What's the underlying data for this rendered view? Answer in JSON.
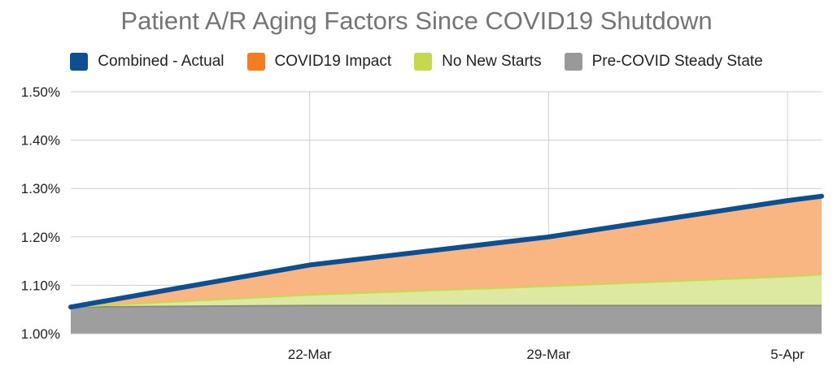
{
  "chart_data": {
    "type": "area",
    "title": "Patient A/R Aging Factors Since COVID19 Shutdown",
    "xlabel": "",
    "ylabel": "",
    "ylim": [
      1.0,
      1.5
    ],
    "y_ticks": [
      "1.00%",
      "1.10%",
      "1.20%",
      "1.30%",
      "1.40%",
      "1.50%"
    ],
    "y_tick_values": [
      1.0,
      1.1,
      1.2,
      1.3,
      1.4,
      1.5
    ],
    "x_ticks": [
      "22-Mar",
      "29-Mar",
      "5-Apr"
    ],
    "x_tick_days": [
      7,
      14,
      21
    ],
    "x_range_days": [
      0,
      22
    ],
    "x_days": [
      0,
      7,
      14,
      21,
      22
    ],
    "grid": true,
    "legend_position": "top",
    "series": [
      {
        "name": "Pre-COVID Steady State",
        "kind": "stacked-area",
        "color": "#9e9e9e",
        "values": [
          1.055,
          1.058,
          1.058,
          1.058,
          1.058
        ]
      },
      {
        "name": "No New Starts",
        "kind": "stacked-area",
        "color": "#dde8a0",
        "values": [
          1.055,
          1.08,
          1.098,
          1.118,
          1.122
        ]
      },
      {
        "name": "COVID19 Impact",
        "kind": "stacked-area",
        "color": "#f9b582",
        "values": [
          1.055,
          1.14,
          1.198,
          1.272,
          1.28
        ]
      },
      {
        "name": "Combined - Actual",
        "kind": "line",
        "color": "#0d4f93",
        "values": [
          1.055,
          1.142,
          1.2,
          1.275,
          1.284
        ]
      }
    ],
    "legend": [
      {
        "name": "Combined - Actual",
        "color": "#0d4f93"
      },
      {
        "name": "COVID19 Impact",
        "color": "#f57c1f"
      },
      {
        "name": "No New Starts",
        "color": "#c5d94a"
      },
      {
        "name": "Pre-COVID Steady State",
        "color": "#999999"
      }
    ]
  }
}
